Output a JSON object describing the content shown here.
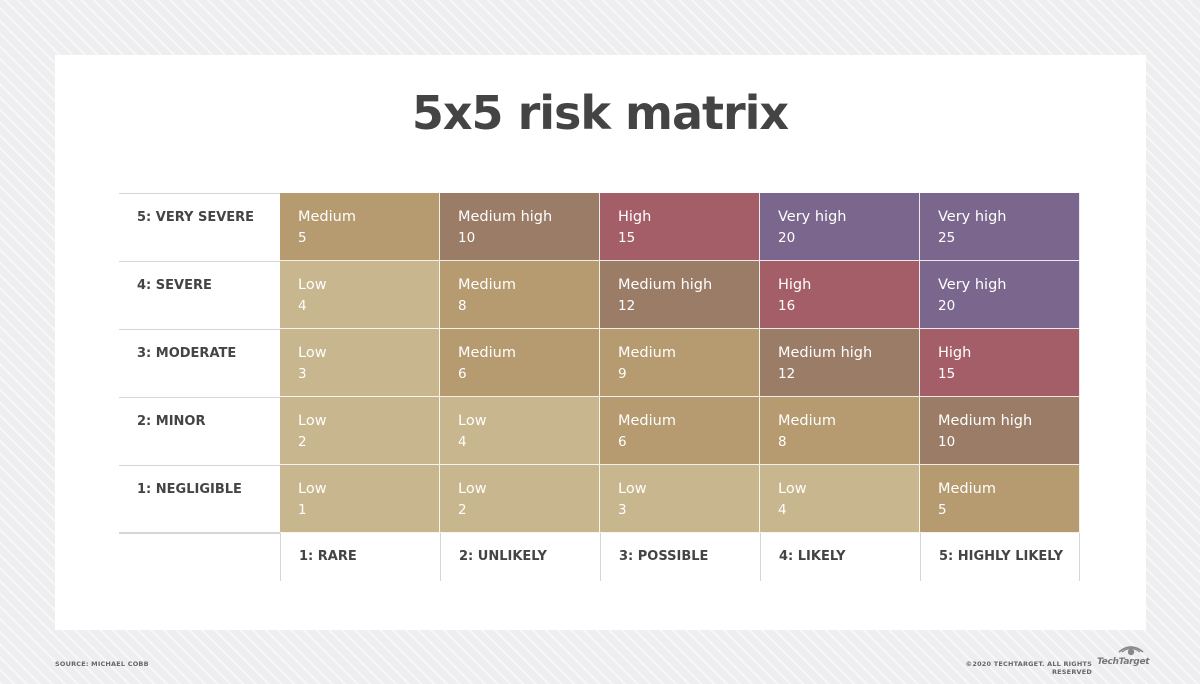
{
  "title": "5x5 risk matrix",
  "colors": {
    "Low": "#c7b68e",
    "Medium": "#b59b6f",
    "Medium high": "#9a7c67",
    "High": "#a45e68",
    "Very high": "#7b678d"
  },
  "rows": [
    {
      "label": "5: VERY SEVERE",
      "cells": [
        {
          "level": "Medium",
          "score": "5"
        },
        {
          "level": "Medium high",
          "score": "10"
        },
        {
          "level": "High",
          "score": "15"
        },
        {
          "level": "Very high",
          "score": "20"
        },
        {
          "level": "Very high",
          "score": "25"
        }
      ]
    },
    {
      "label": "4: SEVERE",
      "cells": [
        {
          "level": "Low",
          "score": "4"
        },
        {
          "level": "Medium",
          "score": "8"
        },
        {
          "level": "Medium high",
          "score": "12"
        },
        {
          "level": "High",
          "score": "16"
        },
        {
          "level": "Very high",
          "score": "20"
        }
      ]
    },
    {
      "label": "3: MODERATE",
      "cells": [
        {
          "level": "Low",
          "score": "3"
        },
        {
          "level": "Medium",
          "score": "6"
        },
        {
          "level": "Medium",
          "score": "9"
        },
        {
          "level": "Medium high",
          "score": "12"
        },
        {
          "level": "High",
          "score": "15"
        }
      ]
    },
    {
      "label": "2: MINOR",
      "cells": [
        {
          "level": "Low",
          "score": "2"
        },
        {
          "level": "Low",
          "score": "4"
        },
        {
          "level": "Medium",
          "score": "6"
        },
        {
          "level": "Medium",
          "score": "8"
        },
        {
          "level": "Medium high",
          "score": "10"
        }
      ]
    },
    {
      "label": "1: NEGLIGIBLE",
      "cells": [
        {
          "level": "Low",
          "score": "1"
        },
        {
          "level": "Low",
          "score": "2"
        },
        {
          "level": "Low",
          "score": "3"
        },
        {
          "level": "Low",
          "score": "4"
        },
        {
          "level": "Medium",
          "score": "5"
        }
      ]
    }
  ],
  "columns": [
    "1: RARE",
    "2: UNLIKELY",
    "3: POSSIBLE",
    "4: LIKELY",
    "5: HIGHLY LIKELY"
  ],
  "footer": {
    "source": "SOURCE: MICHAEL COBB",
    "copyright": "©2020 TECHTARGET. ALL RIGHTS RESERVED",
    "logo_text": "TechTarget"
  }
}
